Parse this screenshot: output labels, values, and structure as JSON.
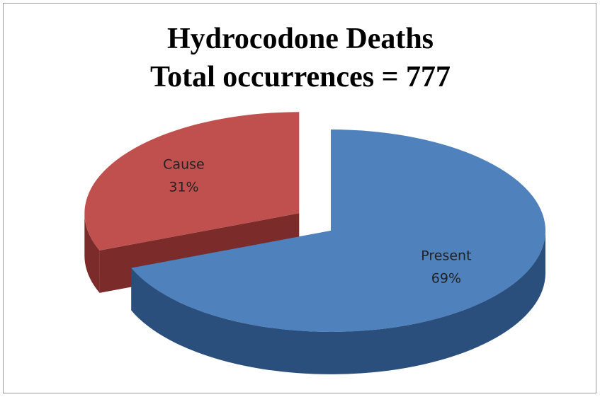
{
  "chart_data": {
    "type": "pie",
    "title": "Hydrocodone Deaths",
    "subtitle": "Total occurrences = 777",
    "categories": [
      "Present",
      "Cause"
    ],
    "values": [
      69,
      31
    ],
    "value_labels": [
      "69%",
      "31%"
    ],
    "colors": [
      "#4f81bd",
      "#c0504d"
    ],
    "side_colors": [
      "#2b4f7c",
      "#7b2b29"
    ],
    "exploded": [
      false,
      true
    ]
  }
}
